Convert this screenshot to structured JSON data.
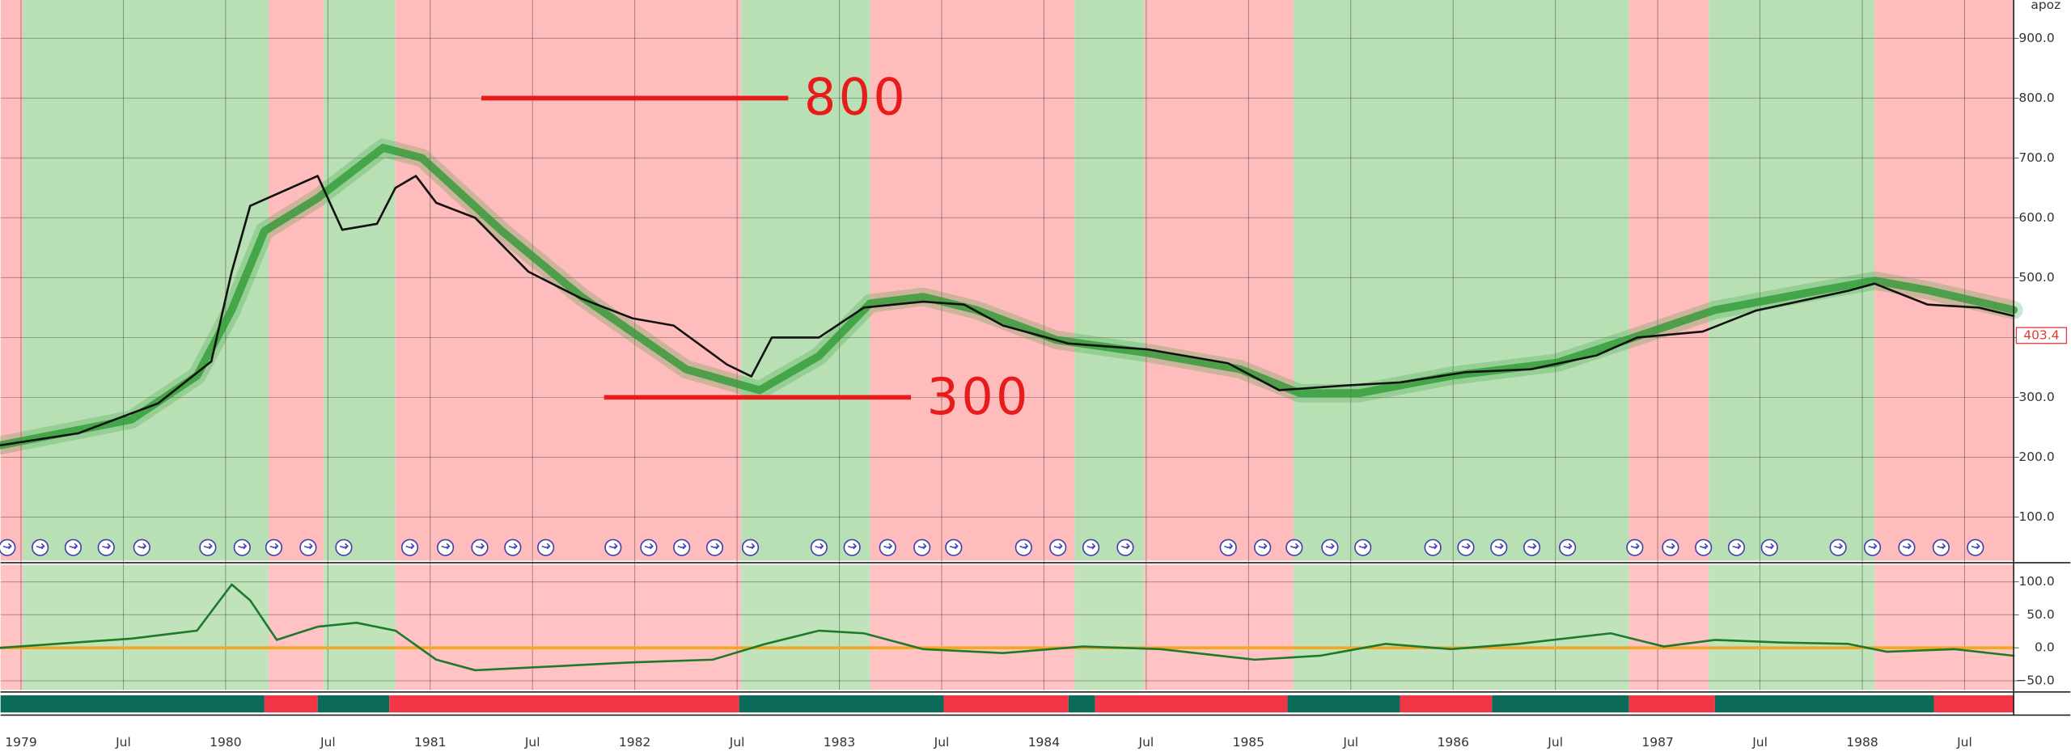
{
  "chart_data": [
    {
      "type": "line",
      "scale_label": "apoz",
      "grid": true,
      "xlim": [
        1978.9,
        1988.74
      ],
      "ylim": [
        27,
        964
      ],
      "xticks": [
        {
          "value": 1979,
          "label": "1979"
        },
        {
          "value": 1979.5,
          "label": "Jul"
        },
        {
          "value": 1980,
          "label": "1980"
        },
        {
          "value": 1980.5,
          "label": "Jul"
        },
        {
          "value": 1981,
          "label": "1981"
        },
        {
          "value": 1981.5,
          "label": "Jul"
        },
        {
          "value": 1982,
          "label": "1982"
        },
        {
          "value": 1982.5,
          "label": "Jul"
        },
        {
          "value": 1983,
          "label": "1983"
        },
        {
          "value": 1983.5,
          "label": "Jul"
        },
        {
          "value": 1984,
          "label": "1984"
        },
        {
          "value": 1984.5,
          "label": "Jul"
        },
        {
          "value": 1985,
          "label": "1985"
        },
        {
          "value": 1985.5,
          "label": "Jul"
        },
        {
          "value": 1986,
          "label": "1986"
        },
        {
          "value": 1986.5,
          "label": "Jul"
        },
        {
          "value": 1987,
          "label": "1987"
        },
        {
          "value": 1987.5,
          "label": "Jul"
        },
        {
          "value": 1988,
          "label": "1988"
        },
        {
          "value": 1988.5,
          "label": "Jul"
        }
      ],
      "yticks": [
        {
          "value": 100,
          "label": "100.0"
        },
        {
          "value": 200,
          "label": "200.0"
        },
        {
          "value": 300,
          "label": "300.0"
        },
        {
          "value": 400,
          "label": "400.0"
        },
        {
          "value": 500,
          "label": "500.0"
        },
        {
          "value": 600,
          "label": "600.0"
        },
        {
          "value": 700,
          "label": "700.0"
        },
        {
          "value": 800,
          "label": "800.0"
        },
        {
          "value": 900,
          "label": "900.0"
        }
      ],
      "regions": [
        {
          "start": 1978.9,
          "end": 1979.01,
          "color": "#ffbcbc"
        },
        {
          "start": 1979.01,
          "end": 1980.21,
          "color": "#b9e0b5"
        },
        {
          "start": 1980.21,
          "end": 1980.48,
          "color": "#ffbcbc"
        },
        {
          "start": 1980.48,
          "end": 1980.83,
          "color": "#b9e0b5"
        },
        {
          "start": 1980.83,
          "end": 1982.52,
          "color": "#ffbcbc"
        },
        {
          "start": 1982.52,
          "end": 1983.15,
          "color": "#b9e0b5"
        },
        {
          "start": 1983.15,
          "end": 1984.15,
          "color": "#ffbcbc"
        },
        {
          "start": 1984.15,
          "end": 1984.49,
          "color": "#b9e0b5"
        },
        {
          "start": 1984.49,
          "end": 1985.22,
          "color": "#ffbcbc"
        },
        {
          "start": 1985.22,
          "end": 1986.86,
          "color": "#b9e0b5"
        },
        {
          "start": 1986.86,
          "end": 1987.25,
          "color": "#ffbcbc"
        },
        {
          "start": 1987.25,
          "end": 1988.06,
          "color": "#b9e0b5"
        },
        {
          "start": 1988.06,
          "end": 1988.74,
          "color": "#ffbcbc"
        }
      ],
      "series": [
        {
          "color": "#2f9a36",
          "x": [
            1978.9,
            1979.54,
            1979.86,
            1980.03,
            1980.19,
            1980.45,
            1980.77,
            1980.96,
            1981.35,
            1981.74,
            1982.25,
            1982.61,
            1982.9,
            1983.15,
            1983.41,
            1983.67,
            1984.06,
            1984.51,
            1984.96,
            1985.25,
            1985.54,
            1985.99,
            1986.51,
            1986.9,
            1987.28,
            1987.8,
            1988.06,
            1988.32,
            1988.74
          ],
          "values": [
            220,
            263,
            336,
            446,
            578,
            633,
            717,
            700,
            578,
            468,
            347,
            312,
            369,
            457,
            468,
            446,
            396,
            374,
            347,
            307,
            307,
            336,
            358,
            402,
            446,
            479,
            495,
            479,
            446
          ]
        },
        {
          "color": "#111111",
          "x": [
            1978.9,
            1979.28,
            1979.67,
            1979.93,
            1980.03,
            1980.12,
            1980.45,
            1980.57,
            1980.74,
            1980.83,
            1980.93,
            1981.03,
            1981.22,
            1981.48,
            1981.74,
            1981.99,
            1982.19,
            1982.45,
            1982.57,
            1982.67,
            1982.9,
            1983.12,
            1983.41,
            1983.61,
            1983.8,
            1984.12,
            1984.51,
            1984.9,
            1985.15,
            1985.48,
            1985.74,
            1986.06,
            1986.38,
            1986.7,
            1986.9,
            1987.22,
            1987.48,
            1987.93,
            1988.06,
            1988.32,
            1988.57,
            1988.74
          ],
          "values": [
            220,
            240,
            290,
            360,
            510,
            620,
            670,
            580,
            590,
            650,
            670,
            625,
            600,
            510,
            465,
            432,
            420,
            355,
            335,
            400,
            400,
            450,
            460,
            455,
            420,
            390,
            380,
            357,
            312,
            320,
            325,
            342,
            347,
            370,
            400,
            410,
            445,
            478,
            490,
            455,
            450,
            436
          ]
        }
      ],
      "annotations": [
        {
          "value": 800,
          "start": 1981.25,
          "end": 1982.75,
          "color": "#e81b1b"
        },
        {
          "value": 300,
          "start": 1981.85,
          "end": 1983.35,
          "color": "#e81b1b"
        }
      ],
      "last_value": 403.4
    },
    {
      "type": "line",
      "grid": true,
      "xlim": [
        1978.9,
        1988.74
      ],
      "ylim": [
        -64,
        126
      ],
      "yticks": [
        {
          "value": -50,
          "label": "−50.0"
        },
        {
          "value": 0,
          "label": "0.0"
        },
        {
          "value": 50,
          "label": "50.0"
        },
        {
          "value": 100,
          "label": "100.0"
        }
      ],
      "zero_line_color": "#f5a623",
      "series": [
        {
          "color": "#1d7a2c",
          "x": [
            1978.9,
            1979.54,
            1979.86,
            1980.03,
            1980.12,
            1980.25,
            1980.45,
            1980.64,
            1980.83,
            1981.03,
            1981.22,
            1981.61,
            1981.99,
            1982.38,
            1982.64,
            1982.9,
            1983.12,
            1983.41,
            1983.8,
            1984.19,
            1984.57,
            1985.03,
            1985.35,
            1985.67,
            1985.99,
            1986.32,
            1986.77,
            1987.03,
            1987.28,
            1987.61,
            1987.93,
            1988.12,
            1988.45,
            1988.74
          ],
          "values": [
            0,
            14,
            26,
            96,
            72,
            12,
            32,
            38,
            26,
            -18,
            -34,
            -28,
            -22,
            -18,
            6,
            26,
            22,
            -2,
            -8,
            2,
            -2,
            -18,
            -12,
            6,
            -2,
            6,
            22,
            2,
            12,
            8,
            6,
            -6,
            -2,
            -12
          ]
        }
      ],
      "strip": [
        {
          "start": 1978.9,
          "end": 1980.19,
          "color": "#0c6b58"
        },
        {
          "start": 1980.19,
          "end": 1980.45,
          "color": "#f23645"
        },
        {
          "start": 1980.45,
          "end": 1980.8,
          "color": "#0c6b58"
        },
        {
          "start": 1980.8,
          "end": 1982.51,
          "color": "#f23645"
        },
        {
          "start": 1982.51,
          "end": 1983.51,
          "color": "#0c6b58"
        },
        {
          "start": 1983.51,
          "end": 1984.12,
          "color": "#f23645"
        },
        {
          "start": 1984.12,
          "end": 1984.25,
          "color": "#0c6b58"
        },
        {
          "start": 1984.25,
          "end": 1985.19,
          "color": "#f23645"
        },
        {
          "start": 1985.19,
          "end": 1985.74,
          "color": "#0c6b58"
        },
        {
          "start": 1985.74,
          "end": 1986.19,
          "color": "#f23645"
        },
        {
          "start": 1986.19,
          "end": 1986.86,
          "color": "#0c6b58"
        },
        {
          "start": 1986.86,
          "end": 1987.28,
          "color": "#f23645"
        },
        {
          "start": 1987.28,
          "end": 1988.35,
          "color": "#0c6b58"
        },
        {
          "start": 1988.35,
          "end": 1988.74,
          "color": "#f23645"
        }
      ]
    }
  ]
}
